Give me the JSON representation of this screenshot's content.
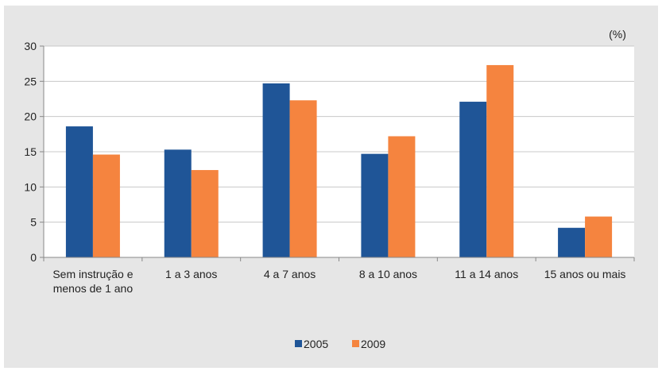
{
  "chart_data": {
    "type": "bar",
    "unit_label": "(%)",
    "categories": [
      [
        "Sem  instrução e",
        "menos de 1 ano"
      ],
      [
        "1 a 3 anos"
      ],
      [
        "4 a 7 anos"
      ],
      [
        "8 a 10 anos"
      ],
      [
        "11 a 14 anos"
      ],
      [
        "15 anos ou mais"
      ]
    ],
    "series": [
      {
        "name": "2005",
        "color": "#1f5597",
        "values": [
          18.6,
          15.3,
          24.7,
          14.7,
          22.1,
          4.2
        ]
      },
      {
        "name": "2009",
        "color": "#f5843f",
        "values": [
          14.6,
          12.4,
          22.3,
          17.2,
          27.3,
          5.8
        ]
      }
    ],
    "ylim": [
      0,
      30
    ],
    "yticks": [
      0,
      5,
      10,
      15,
      20,
      25,
      30
    ],
    "grid": true,
    "legend_position": "bottom"
  }
}
